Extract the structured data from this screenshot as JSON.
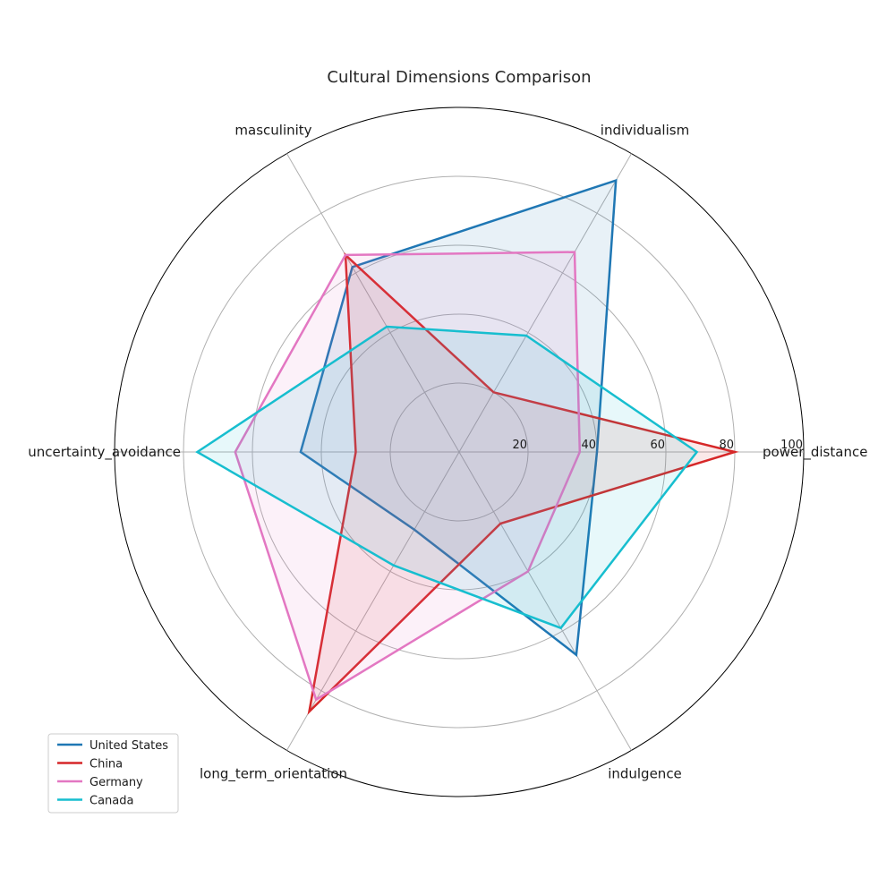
{
  "chart_data": {
    "type": "radar",
    "title": "Cultural Dimensions Comparison",
    "axes": [
      "power_distance",
      "individualism",
      "masculinity",
      "uncertainty_avoidance",
      "long_term_orientation",
      "indulgence"
    ],
    "rlim": [
      0,
      100
    ],
    "rticks": [
      20,
      40,
      60,
      80,
      100
    ],
    "grid": true,
    "legend_position": "lower-left",
    "series": [
      {
        "name": "United States",
        "color": "#1f77b4",
        "values": [
          40,
          91,
          62,
          46,
          26,
          68
        ]
      },
      {
        "name": "China",
        "color": "#d62728",
        "values": [
          80,
          20,
          66,
          30,
          87,
          24
        ]
      },
      {
        "name": "Germany",
        "color": "#e377c2",
        "values": [
          35,
          67,
          66,
          65,
          83,
          40
        ]
      },
      {
        "name": "Canada",
        "color": "#17becf",
        "values": [
          69,
          39,
          42,
          76,
          38,
          59
        ]
      }
    ]
  }
}
